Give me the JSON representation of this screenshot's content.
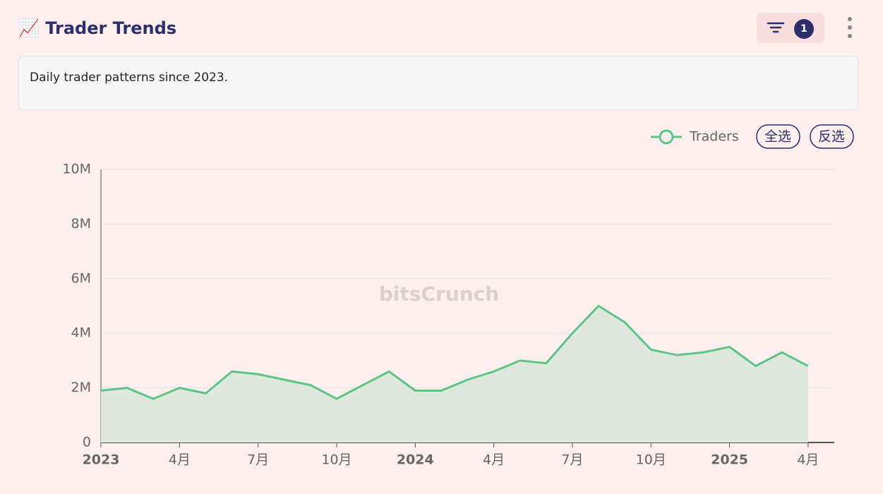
{
  "header": {
    "title": "Trader Trends",
    "filter_count": "1"
  },
  "description": "Daily trader patterns since 2023.",
  "controls": {
    "select_all": "全选",
    "invert": "反选"
  },
  "watermark": "bitsCrunch",
  "chart_data": {
    "type": "line",
    "x": [
      "2023-01",
      "2023-02",
      "2023-03",
      "2023-04",
      "2023-05",
      "2023-06",
      "2023-07",
      "2023-08",
      "2023-09",
      "2023-10",
      "2023-11",
      "2023-12",
      "2024-01",
      "2024-02",
      "2024-03",
      "2024-04",
      "2024-05",
      "2024-06",
      "2024-07",
      "2024-08",
      "2024-09",
      "2024-10",
      "2024-11",
      "2024-12",
      "2025-01",
      "2025-02",
      "2025-03",
      "2025-04"
    ],
    "xlim": [
      "2023-01",
      "2025-05"
    ],
    "xticks": [
      {
        "value": "2023-01",
        "label": "2023"
      },
      {
        "value": "2023-04",
        "label": "4月"
      },
      {
        "value": "2023-07",
        "label": "7月"
      },
      {
        "value": "2023-10",
        "label": "10月"
      },
      {
        "value": "2024-01",
        "label": "2024"
      },
      {
        "value": "2024-04",
        "label": "4月"
      },
      {
        "value": "2024-07",
        "label": "7月"
      },
      {
        "value": "2024-10",
        "label": "10月"
      },
      {
        "value": "2025-01",
        "label": "2025"
      },
      {
        "value": "2025-04",
        "label": "4月"
      }
    ],
    "ylim": [
      0,
      10000000
    ],
    "yticks": [
      0,
      {
        "value": 2000000,
        "label": "2M"
      },
      {
        "value": 4000000,
        "label": "4M"
      },
      {
        "value": 6000000,
        "label": "6M"
      },
      {
        "value": 8000000,
        "label": "8M"
      },
      {
        "value": 10000000,
        "label": "10M"
      }
    ],
    "grid": true,
    "series": [
      {
        "name": "Traders",
        "color": "#5cc488",
        "values": [
          1900000,
          2000000,
          1600000,
          2000000,
          1800000,
          2600000,
          2500000,
          2300000,
          2100000,
          1600000,
          2100000,
          2600000,
          1900000,
          1900000,
          2300000,
          2600000,
          3000000,
          2900000,
          4000000,
          5000000,
          4400000,
          3400000,
          3200000,
          3300000,
          3500000,
          2800000,
          3300000,
          2800000
        ]
      }
    ]
  }
}
